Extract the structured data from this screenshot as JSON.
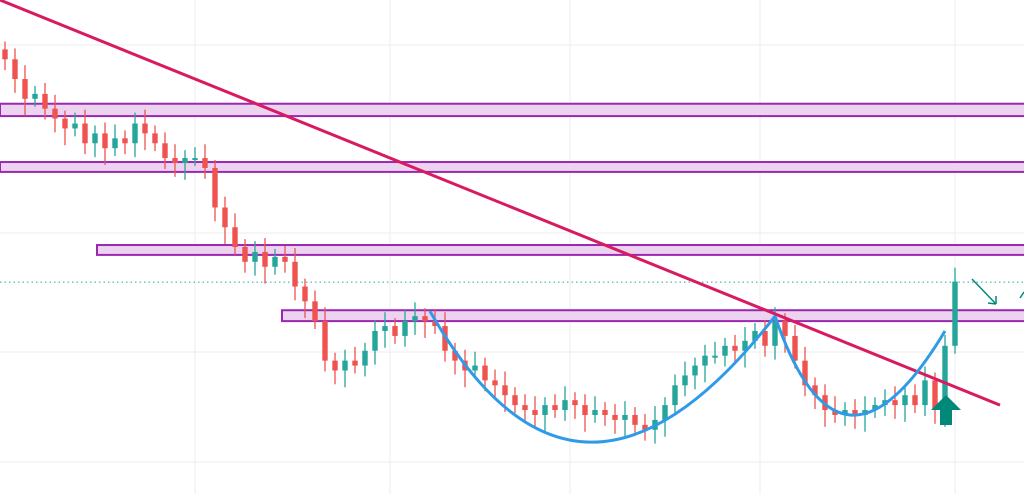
{
  "chart_data": {
    "type": "candlestick",
    "title": "",
    "xlabel": "",
    "ylabel": "",
    "ylim": [
      0,
      100
    ],
    "xlim": [
      -0.5,
      101.9
    ],
    "grid": true,
    "closes": [
      88,
      84,
      80,
      81,
      78,
      76,
      74,
      75,
      71,
      73,
      70,
      72,
      71,
      75,
      73,
      71,
      68,
      67,
      68,
      68,
      66,
      58,
      54,
      50,
      47,
      49,
      46,
      48,
      47,
      42,
      39,
      35,
      27,
      25,
      27,
      26,
      29,
      33,
      34,
      32,
      35,
      36,
      35,
      34,
      29,
      27,
      25,
      26,
      23,
      22,
      20,
      18,
      17,
      16,
      18,
      17,
      19,
      18,
      16,
      17,
      16,
      15,
      16,
      14,
      13,
      15,
      18,
      22,
      24,
      26,
      28,
      28,
      30,
      29,
      31,
      33,
      30,
      35,
      32,
      27,
      22,
      20,
      17,
      16,
      17,
      16,
      17,
      18,
      19,
      18,
      20,
      18,
      23,
      17,
      30,
      43
    ],
    "first_open": 90,
    "last_price": 42.9,
    "zones": [
      {
        "from": -0.5,
        "top": 79,
        "bottom": 76.5
      },
      {
        "from": -0.5,
        "top": 67.2,
        "bottom": 65.2
      },
      {
        "from": 9.2,
        "top": 50.4,
        "bottom": 48.4
      },
      {
        "from": 27.7,
        "top": 37.2,
        "bottom": 35
      }
    ],
    "trendline": {
      "from": [
        -0.5,
        100
      ],
      "to": [
        99.5,
        18
      ]
    },
    "cup_curves": [
      {
        "start": [
          42.5,
          37
        ],
        "bottom": [
          58.5,
          10.5
        ],
        "end": [
          77,
          36
        ]
      },
      {
        "start": [
          77,
          36
        ],
        "bottom": [
          84.5,
          16
        ],
        "end": [
          94,
          33
        ]
      }
    ],
    "colors": {
      "up": "#26a69a",
      "down": "#ef5350",
      "zone_fill": "#ecd3f0",
      "zone_border": "#9c27b0",
      "trendline": "#d81b60",
      "curve": "#2f9be8",
      "signal_arrow": "#00897b",
      "grid": "#eeeeee"
    }
  }
}
